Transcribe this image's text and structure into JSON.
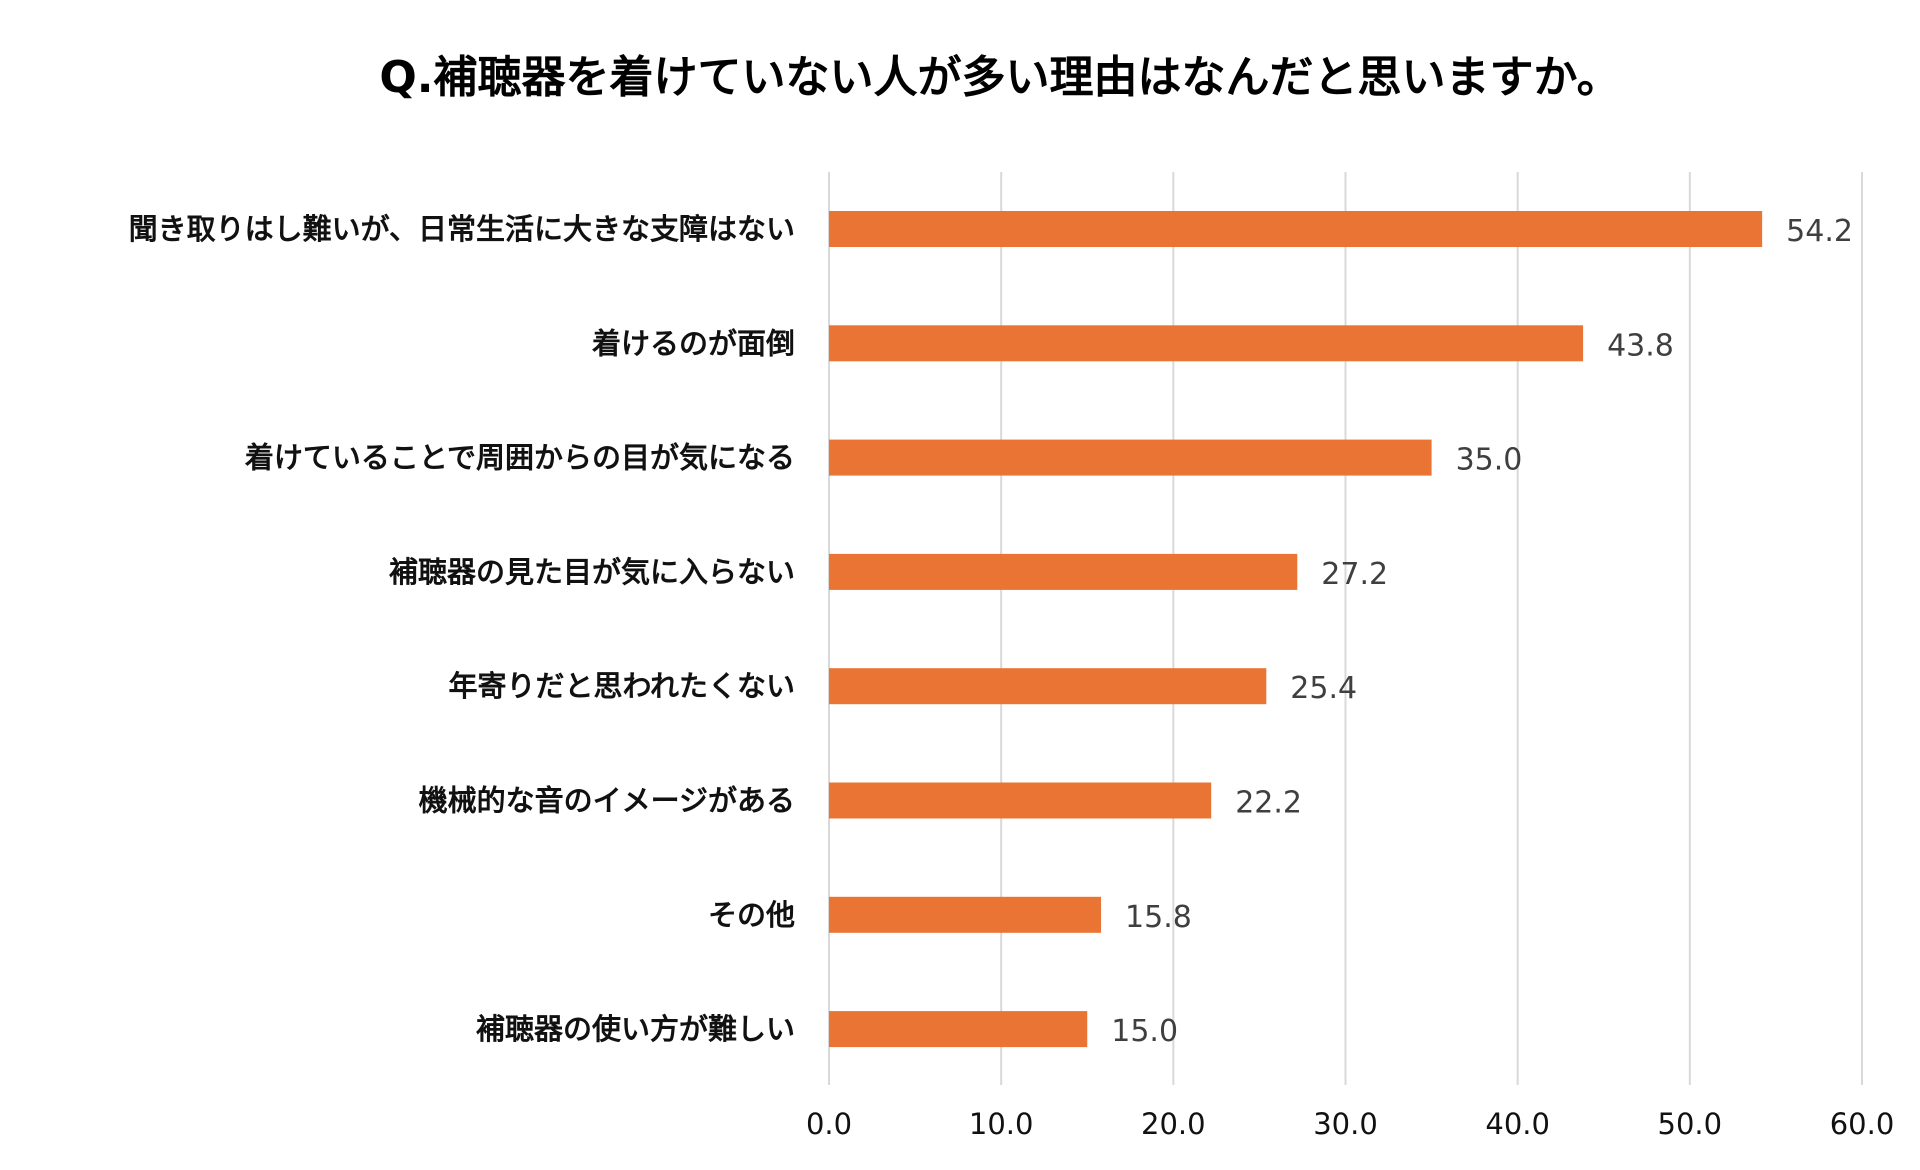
{
  "chart_data": {
    "type": "bar",
    "orientation": "horizontal",
    "title": "Q.補聴器を着けていない人が多い理由はなんだと思いますか。",
    "xlabel": "",
    "ylabel": "",
    "categories": [
      "聞き取りはし難いが、日常生活に大きな支障はない",
      "着けるのが面倒",
      "着けていることで周囲からの目が気になる",
      "補聴器の見た目が気に入らない",
      "年寄りだと思われたくない",
      "機械的な音のイメージがある",
      "その他",
      "補聴器の使い方が難しい"
    ],
    "values": [
      54.2,
      43.8,
      35.0,
      27.2,
      25.4,
      22.2,
      15.8,
      15.0
    ],
    "value_labels": [
      "54.2",
      "43.8",
      "35.0",
      "27.2",
      "25.4",
      "22.2",
      "15.8",
      "15.0"
    ],
    "xlim": [
      0,
      60
    ],
    "ticks": [
      0,
      10,
      20,
      30,
      40,
      50,
      60
    ],
    "tick_labels": [
      "0.0",
      "10.0",
      "20.0",
      "30.0",
      "40.0",
      "50.0",
      "60.0"
    ],
    "grid": "vertical",
    "legend": "none",
    "bar_color": "#ea7434"
  }
}
